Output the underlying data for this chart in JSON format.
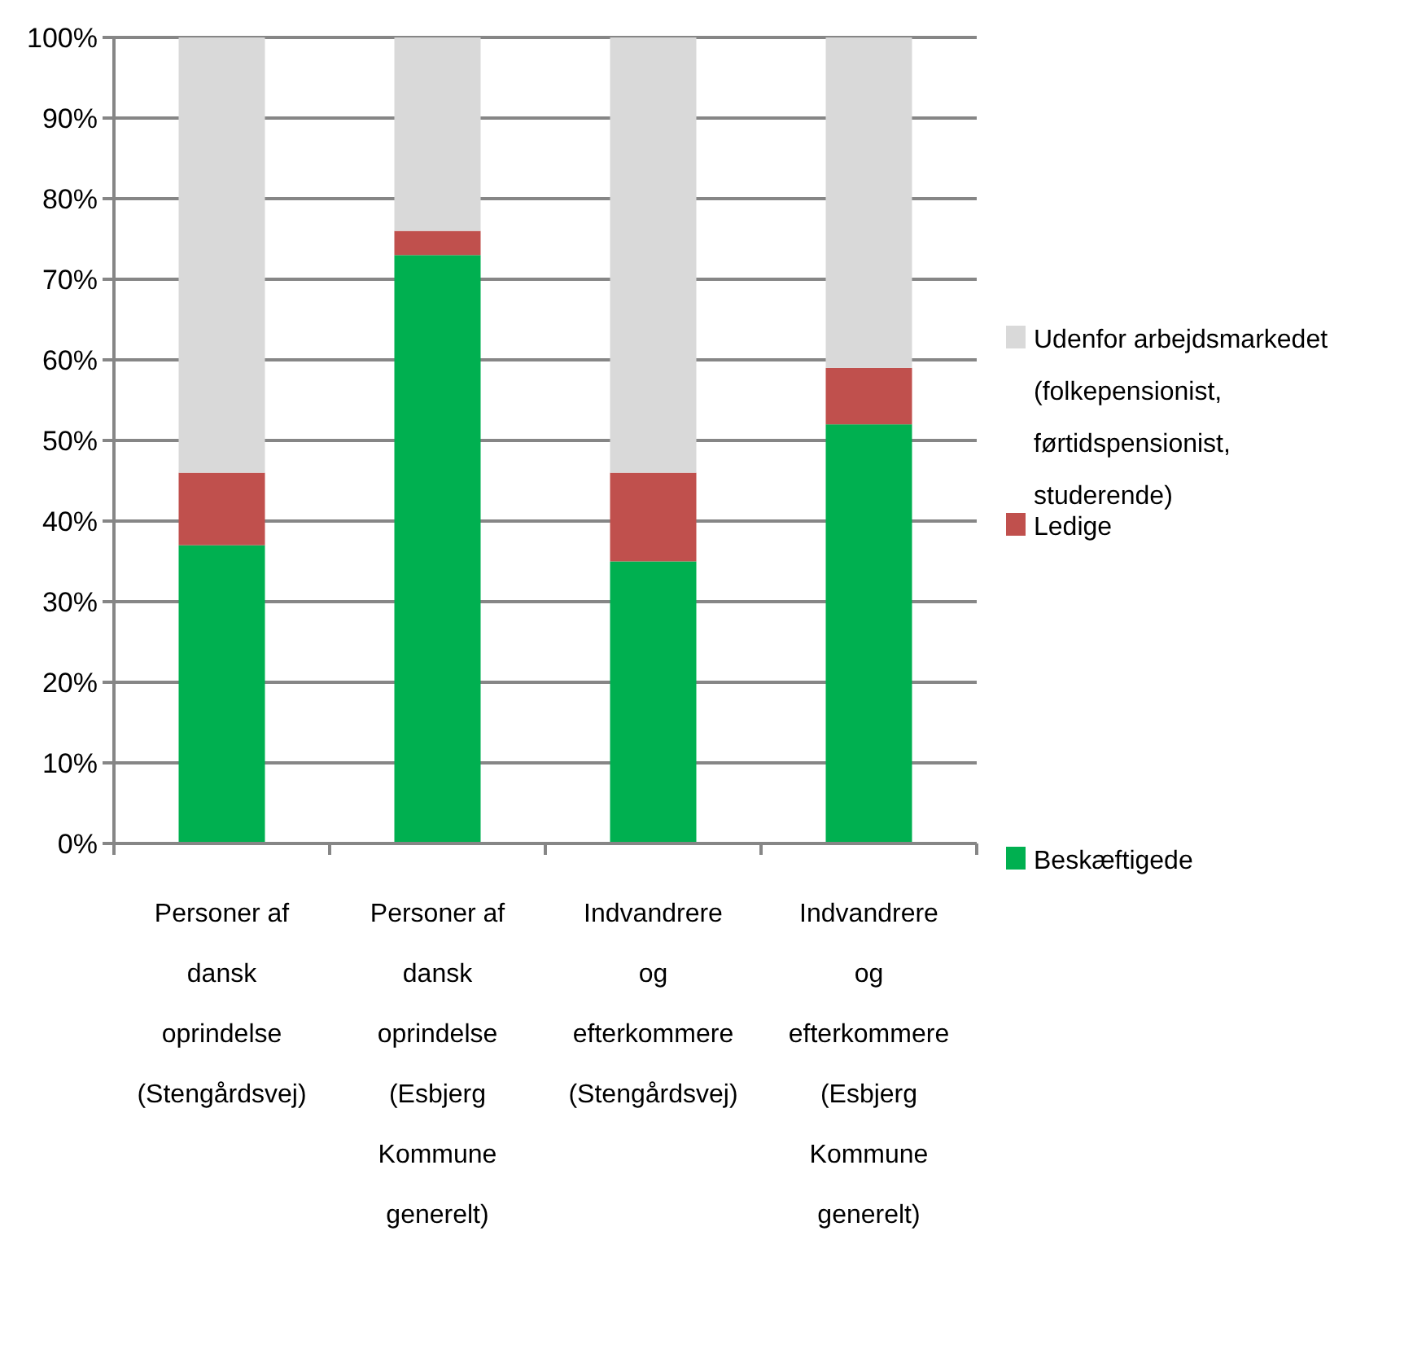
{
  "chart_data": {
    "type": "bar",
    "stacked": true,
    "categories": [
      "Personer af dansk oprindelse (Stengårdsvej)",
      "Personer af dansk oprindelse (Esbjerg Kommune generelt)",
      "Indvandrere og efterkommere (Stengårdsvej)",
      "Indvandrere og efterkommere (Esbjerg Kommune generelt)"
    ],
    "series": [
      {
        "name": "Beskæftigede",
        "color": "#00b050",
        "values": [
          37,
          73,
          35,
          52
        ]
      },
      {
        "name": "Ledige",
        "color": "#c0504d",
        "values": [
          9,
          3,
          11,
          7
        ]
      },
      {
        "name": "Udenfor arbejdsmarkedet (folkepensionist, førtidspensionist, studerende)",
        "color": "#d9d9d9",
        "values": [
          54,
          24,
          54,
          41
        ]
      }
    ],
    "ylim": [
      0,
      100
    ],
    "yticks": [
      {
        "value": 0,
        "label": "0%"
      },
      {
        "value": 10,
        "label": "10%"
      },
      {
        "value": 20,
        "label": "20%"
      },
      {
        "value": 30,
        "label": "30%"
      },
      {
        "value": 40,
        "label": "40%"
      },
      {
        "value": 50,
        "label": "50%"
      },
      {
        "value": 60,
        "label": "60%"
      },
      {
        "value": 70,
        "label": "70%"
      },
      {
        "value": 80,
        "label": "80%"
      },
      {
        "value": 90,
        "label": "90%"
      },
      {
        "value": 100,
        "label": "100%"
      }
    ],
    "grid": "y",
    "legend": "right"
  }
}
